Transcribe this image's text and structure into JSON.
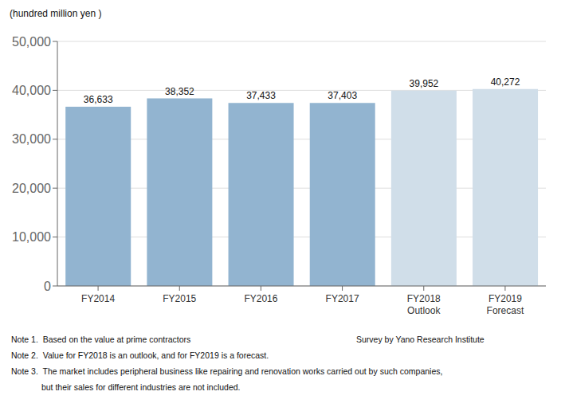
{
  "chart_data": {
    "type": "bar",
    "ylabel": "(hundred million yen )",
    "categories": [
      "FY2014",
      "FY2015",
      "FY2016",
      "FY2017",
      "FY2018\nOutlook",
      "FY2019\nForecast"
    ],
    "values": [
      36633,
      38352,
      37433,
      37403,
      39952,
      40272
    ],
    "value_labels": [
      "36,633",
      "38,352",
      "37,433",
      "37,403",
      "39,952",
      "40,272"
    ],
    "data_labels": true,
    "colors": [
      "#92B4D0",
      "#92B4D0",
      "#92B4D0",
      "#92B4D0",
      "#D0DEE9",
      "#D0DEE9"
    ],
    "ylim": [
      0,
      50000
    ],
    "yticks": [
      0,
      {
        "value": 10000,
        "label": "10,000"
      },
      {
        "value": 20000,
        "label": "20,000"
      },
      {
        "value": 30000,
        "label": "30,000"
      },
      {
        "value": 40000,
        "label": "40,000"
      },
      {
        "value": 50000,
        "label": "50,000"
      }
    ],
    "grid": true,
    "annotations": [
      "Note 1.  Based on the value at prime contractors",
      "Survey by Yano Research Institute",
      "Note 2.  Value for FY2018 is an outlook, and for FY2019 is a forecast.",
      "Note 3.  The market includes peripheral business like repairing and renovation works carried out by such companies,",
      "             but their sales for different industries are not included."
    ]
  }
}
